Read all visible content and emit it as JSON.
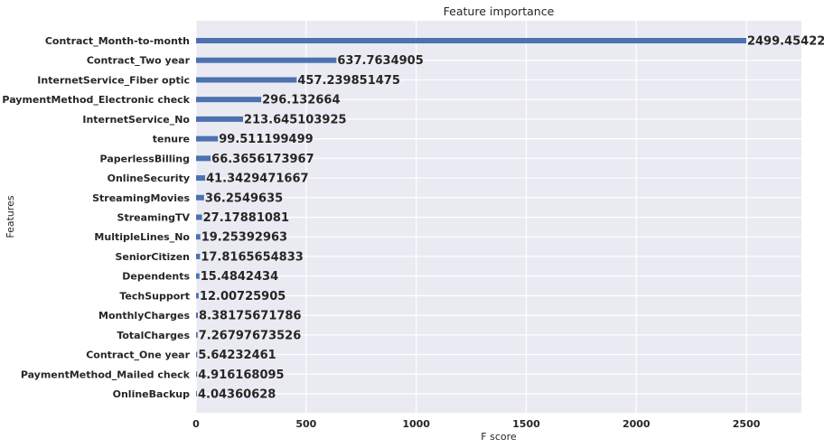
{
  "chart_data": {
    "type": "bar",
    "orientation": "horizontal",
    "title": "Feature importance",
    "xlabel": "F score",
    "ylabel": "Features",
    "xlim": [
      0,
      2750
    ],
    "xticks": [
      0,
      500,
      1000,
      1500,
      2000,
      2500
    ],
    "grid": true,
    "bar_color": "#4c72b0",
    "background_color": "#eaeaf2",
    "categories": [
      "Contract_Month-to-month",
      "Contract_Two year",
      "InternetService_Fiber optic",
      "PaymentMethod_Electronic check",
      "InternetService_No",
      "tenure",
      "PaperlessBilling",
      "OnlineSecurity",
      "StreamingMovies",
      "StreamingTV",
      "MultipleLines_No",
      "SeniorCitizen",
      "Dependents",
      "TechSupport",
      "MonthlyCharges",
      "TotalCharges",
      "Contract_One year",
      "PaymentMethod_Mailed check",
      "OnlineBackup"
    ],
    "values": [
      2499.45422,
      637.7634905,
      457.239851475,
      296.132664,
      213.645103925,
      99.511199499,
      66.3656173967,
      41.3429471667,
      36.2549635,
      27.17881081,
      19.25392963,
      17.8165654833,
      15.4842434,
      12.00725905,
      8.38175671786,
      7.26797673526,
      5.64232461,
      4.916168095,
      4.04360628
    ],
    "value_labels": [
      "2499.45422",
      "637.7634905",
      "457.239851475",
      "296.132664",
      "213.645103925",
      "99.511199499",
      "66.3656173967",
      "41.3429471667",
      "36.2549635",
      "27.17881081",
      "19.25392963",
      "17.8165654833",
      "15.4842434",
      "12.00725905",
      "8.38175671786",
      "7.26797673526",
      "5.64232461",
      "4.916168095",
      "4.04360628"
    ]
  }
}
